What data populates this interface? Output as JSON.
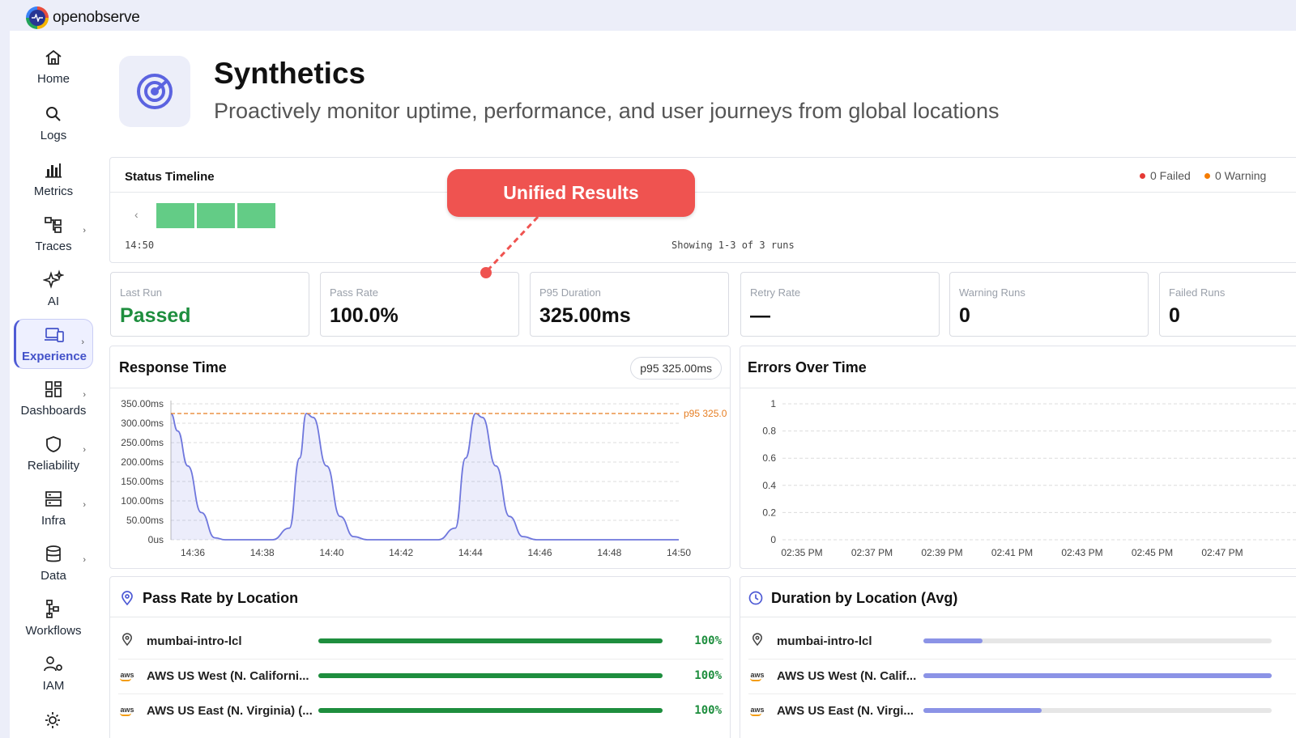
{
  "brand": {
    "name": "openobserve"
  },
  "sidebar": {
    "items": [
      {
        "label": "Home",
        "icon": "home-icon"
      },
      {
        "label": "Logs",
        "icon": "search-icon"
      },
      {
        "label": "Metrics",
        "icon": "bar-chart-icon"
      },
      {
        "label": "Traces",
        "icon": "trace-icon"
      },
      {
        "label": "AI",
        "icon": "sparkle-icon"
      },
      {
        "label": "Experience",
        "icon": "devices-icon",
        "active": true
      },
      {
        "label": "Dashboards",
        "icon": "dashboard-icon"
      },
      {
        "label": "Reliability",
        "icon": "shield-icon"
      },
      {
        "label": "Infra",
        "icon": "server-icon"
      },
      {
        "label": "Data",
        "icon": "database-icon"
      },
      {
        "label": "Workflows",
        "icon": "workflow-icon"
      },
      {
        "label": "IAM",
        "icon": "user-gear-icon"
      }
    ]
  },
  "header": {
    "title": "Synthetics",
    "subtitle": "Proactively monitor uptime, performance, and user journeys from global locations"
  },
  "status_timeline": {
    "title": "Status Timeline",
    "failed": "0 Failed",
    "warning": "0 Warning",
    "time_label": "14:50",
    "showing": "Showing 1-3 of 3 runs",
    "runs": [
      "pass",
      "pass",
      "pass"
    ]
  },
  "callout": {
    "text": "Unified Results"
  },
  "metrics": [
    {
      "label": "Last Run",
      "value": "Passed",
      "color": "#1e8e3e"
    },
    {
      "label": "Pass Rate",
      "value": "100.0%"
    },
    {
      "label": "P95 Duration",
      "value": "325.00ms"
    },
    {
      "label": "Retry Rate",
      "value": "—"
    },
    {
      "label": "Warning Runs",
      "value": "0"
    },
    {
      "label": "Failed Runs",
      "value": "0"
    }
  ],
  "response_time": {
    "title": "Response Time",
    "badge": "p95 325.00ms",
    "p95_label": "p95 325.0"
  },
  "errors_over_time": {
    "title": "Errors Over Time"
  },
  "chart_data": [
    {
      "type": "area",
      "title": "Response Time",
      "x": [
        "14:36",
        "14:38",
        "14:40",
        "14:42",
        "14:44",
        "14:46",
        "14:48",
        "14:50"
      ],
      "y_ticks": [
        "350.00ms",
        "300.00ms",
        "250.00ms",
        "200.00ms",
        "150.00ms",
        "100.00ms",
        "50.00ms",
        "0us"
      ],
      "ylim": [
        0,
        350
      ],
      "unit": "ms",
      "reference_line": {
        "label": "p95 325.0",
        "value": 325
      },
      "series": [
        {
          "points": [
            [
              0,
              325
            ],
            [
              0.2,
              280
            ],
            [
              0.5,
              190
            ],
            [
              0.9,
              70
            ],
            [
              1.3,
              5
            ],
            [
              1.6,
              0
            ],
            [
              3.0,
              0
            ],
            [
              3.5,
              30
            ],
            [
              3.8,
              210
            ],
            [
              4.0,
              325
            ],
            [
              4.2,
              315
            ],
            [
              4.6,
              190
            ],
            [
              5.0,
              60
            ],
            [
              5.4,
              8
            ],
            [
              5.8,
              0
            ],
            [
              7.9,
              0
            ],
            [
              8.4,
              30
            ],
            [
              8.7,
              210
            ],
            [
              9.0,
              325
            ],
            [
              9.2,
              315
            ],
            [
              9.6,
              190
            ],
            [
              10.0,
              60
            ],
            [
              10.4,
              8
            ],
            [
              10.8,
              0
            ],
            [
              15,
              0
            ]
          ]
        }
      ],
      "x_range": [
        0,
        15
      ]
    },
    {
      "type": "line",
      "title": "Errors Over Time",
      "x": [
        "02:35 PM",
        "02:37 PM",
        "02:39 PM",
        "02:41 PM",
        "02:43 PM",
        "02:45 PM",
        "02:47 PM"
      ],
      "y_ticks": [
        "1",
        "0.8",
        "0.6",
        "0.4",
        "0.2",
        "0"
      ],
      "ylim": [
        0,
        1
      ],
      "series": []
    }
  ],
  "pass_rate_by_location": {
    "title": "Pass Rate by Location",
    "rows": [
      {
        "name": "mumbai-intro-lcl",
        "icon": "location-pin-icon",
        "value": "100%",
        "fraction": 1.0
      },
      {
        "name": "AWS US West (N. Californi...",
        "icon": "aws-icon",
        "value": "100%",
        "fraction": 1.0
      },
      {
        "name": "AWS US East (N. Virginia) (...",
        "icon": "aws-icon",
        "value": "100%",
        "fraction": 1.0
      }
    ]
  },
  "duration_by_location": {
    "title": "Duration by Location (Avg)",
    "rows": [
      {
        "name": "mumbai-intro-lcl",
        "icon": "location-pin-icon",
        "fraction": 0.17
      },
      {
        "name": "AWS US West (N. Calif...",
        "icon": "aws-icon",
        "fraction": 1.0
      },
      {
        "name": "AWS US East (N. Virgi...",
        "icon": "aws-icon",
        "fraction": 0.34
      }
    ]
  },
  "colors": {
    "accent": "#4f5bd5",
    "pass": "#63cc86",
    "bar_green": "#1e8e3e",
    "bar_purple": "#8b93e6",
    "failed": "#e53935",
    "warning": "#f57c00",
    "p95": "#e67e22"
  }
}
